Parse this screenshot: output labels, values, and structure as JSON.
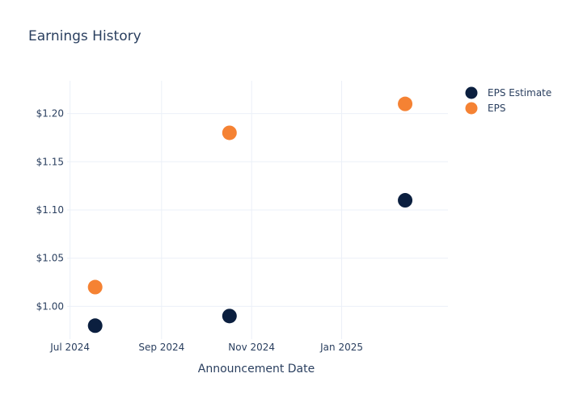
{
  "chart_data": {
    "type": "scatter",
    "title": "Earnings History",
    "xlabel": "Announcement Date",
    "ylabel": "",
    "x_ticks": [
      {
        "label": "Jul 2024",
        "date": "2024-07-01"
      },
      {
        "label": "Sep 2024",
        "date": "2024-09-01"
      },
      {
        "label": "Nov 2024",
        "date": "2024-11-01"
      },
      {
        "label": "Jan 2025",
        "date": "2025-01-01"
      }
    ],
    "xlim": [
      "2024-06-29",
      "2025-03-14"
    ],
    "y_ticks": [
      {
        "label": "$1.00",
        "value": 1.0
      },
      {
        "label": "$1.05",
        "value": 1.05
      },
      {
        "label": "$1.10",
        "value": 1.1
      },
      {
        "label": "$1.15",
        "value": 1.15
      },
      {
        "label": "$1.20",
        "value": 1.2
      }
    ],
    "ylim": [
      0.966,
      1.234
    ],
    "grid": true,
    "legend_position": "top-right",
    "series": [
      {
        "name": "EPS Estimate",
        "color": "#0b1f3f",
        "points": [
          {
            "x": "2024-07-18",
            "y": 0.98
          },
          {
            "x": "2024-10-17",
            "y": 0.99
          },
          {
            "x": "2025-02-13",
            "y": 1.11
          }
        ]
      },
      {
        "name": "EPS",
        "color": "#f58233",
        "points": [
          {
            "x": "2024-07-18",
            "y": 1.02
          },
          {
            "x": "2024-10-17",
            "y": 1.18
          },
          {
            "x": "2025-02-13",
            "y": 1.21
          }
        ]
      }
    ]
  }
}
